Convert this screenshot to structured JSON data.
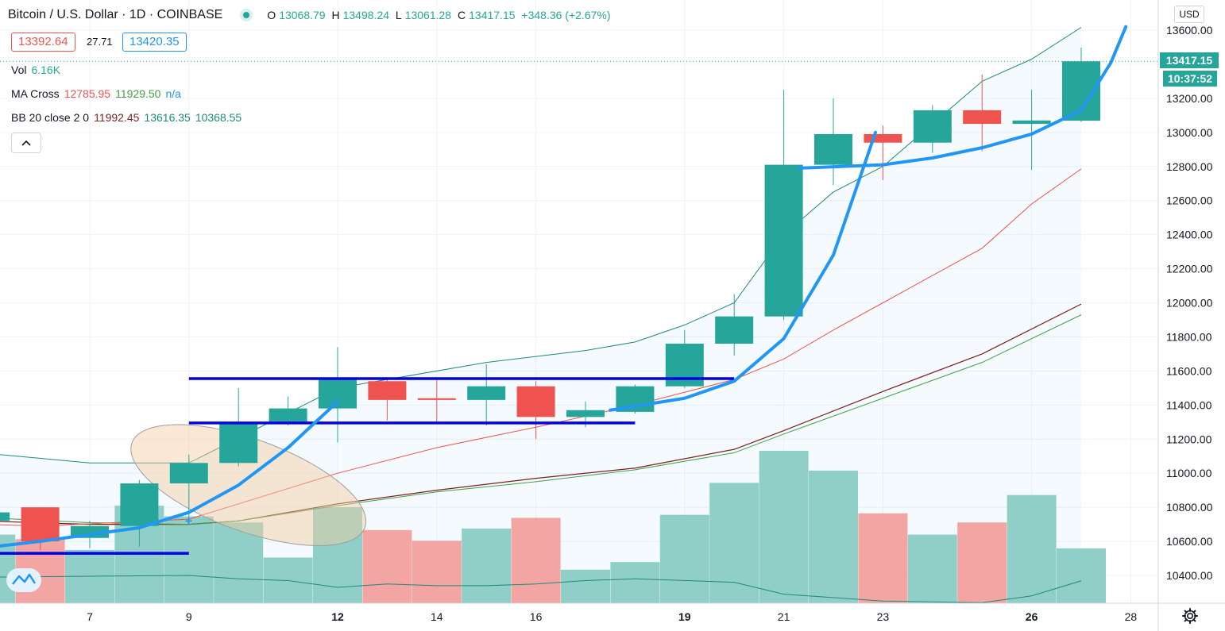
{
  "header": {
    "title": "Bitcoin / U.S. Dollar · 1D · COINBASE",
    "open_label": "O",
    "open": "13068.79",
    "high_label": "H",
    "high": "13498.24",
    "low_label": "L",
    "low": "13061.28",
    "close_label": "C",
    "close": "13417.15",
    "change": "+348.36 (+2.67%)"
  },
  "quote": {
    "bid": "13392.64",
    "spread": "27.71",
    "ask": "13420.35"
  },
  "indicators": {
    "vol": {
      "label": "Vol",
      "value": "6.16K"
    },
    "ma_cross": {
      "label": "MA Cross",
      "fast": "12785.95",
      "slow": "11929.50",
      "extra": "n/a"
    },
    "bb": {
      "label": "BB 20 close 2 0",
      "basis": "11992.45",
      "upper": "13616.35",
      "lower": "10368.55"
    }
  },
  "collapse_icon": "chevron-up-icon",
  "currency_button": "USD",
  "last_price": "13417.15",
  "countdown": "10:37:52",
  "colors": {
    "up": "#26a69a",
    "down": "#ef5350",
    "up_vol": "#8fcfc7",
    "down_vol": "#f2a5a3",
    "bb_band": "#1e8a78",
    "ma_fast": "#ef5350",
    "ma_slow": "#43a047",
    "bb_basis": "#7b1f1f",
    "curve": "#2196f3",
    "level": "#0000e6"
  },
  "chart_data": {
    "type": "candlestick",
    "x_ticks": [
      {
        "day": 7,
        "label": "7"
      },
      {
        "day": 9,
        "label": "9"
      },
      {
        "day": 12,
        "label": "12"
      },
      {
        "day": 14,
        "label": "14"
      },
      {
        "day": 16,
        "label": "16"
      },
      {
        "day": 19,
        "label": "19"
      },
      {
        "day": 21,
        "label": "21"
      },
      {
        "day": 23,
        "label": "23"
      },
      {
        "day": 26,
        "label": "26"
      },
      {
        "day": 28,
        "label": "28"
      }
    ],
    "y_ticks": [
      "13600.00",
      "13400.00",
      "13200.00",
      "13000.00",
      "12800.00",
      "12600.00",
      "12400.00",
      "12200.00",
      "12000.00",
      "11800.00",
      "11600.00",
      "11400.00",
      "11200.00",
      "11000.00",
      "10800.00",
      "10600.00",
      "10400.00"
    ],
    "y_range": [
      10250,
      13700
    ],
    "candles": [
      {
        "day": 5,
        "o": 10720,
        "h": 10780,
        "l": 10640,
        "c": 10770
      },
      {
        "day": 6,
        "o": 10800,
        "h": 10800,
        "l": 10550,
        "c": 10600
      },
      {
        "day": 7,
        "o": 10620,
        "h": 10720,
        "l": 10560,
        "c": 10690
      },
      {
        "day": 8,
        "o": 10690,
        "h": 10960,
        "l": 10570,
        "c": 10940
      },
      {
        "day": 9,
        "o": 10940,
        "h": 11110,
        "l": 10700,
        "c": 11060
      },
      {
        "day": 10,
        "o": 11060,
        "h": 11500,
        "l": 11040,
        "c": 11300
      },
      {
        "day": 11,
        "o": 11300,
        "h": 11450,
        "l": 11280,
        "c": 11380
      },
      {
        "day": 12,
        "o": 11380,
        "h": 11740,
        "l": 11180,
        "c": 11550
      },
      {
        "day": 13,
        "o": 11540,
        "h": 11560,
        "l": 11310,
        "c": 11430
      },
      {
        "day": 14,
        "o": 11440,
        "h": 11550,
        "l": 11300,
        "c": 11430
      },
      {
        "day": 15,
        "o": 11430,
        "h": 11640,
        "l": 11280,
        "c": 11510
      },
      {
        "day": 16,
        "o": 11510,
        "h": 11540,
        "l": 11200,
        "c": 11330
      },
      {
        "day": 17,
        "o": 11330,
        "h": 11420,
        "l": 11270,
        "c": 11370
      },
      {
        "day": 18,
        "o": 11360,
        "h": 11520,
        "l": 11350,
        "c": 11510
      },
      {
        "day": 19,
        "o": 11510,
        "h": 11840,
        "l": 11500,
        "c": 11760
      },
      {
        "day": 20,
        "o": 11760,
        "h": 12050,
        "l": 11690,
        "c": 11920
      },
      {
        "day": 21,
        "o": 11920,
        "h": 13250,
        "l": 11900,
        "c": 12810
      },
      {
        "day": 22,
        "o": 12810,
        "h": 13200,
        "l": 12690,
        "c": 12990
      },
      {
        "day": 23,
        "o": 12990,
        "h": 13040,
        "l": 12720,
        "c": 12940
      },
      {
        "day": 24,
        "o": 12940,
        "h": 13160,
        "l": 12880,
        "c": 13130
      },
      {
        "day": 25,
        "o": 13130,
        "h": 13340,
        "l": 12890,
        "c": 13050
      },
      {
        "day": 26,
        "o": 13050,
        "h": 13250,
        "l": 12780,
        "c": 13070
      },
      {
        "day": 27,
        "o": 13068.79,
        "h": 13498.24,
        "l": 13061.28,
        "c": 13417.15
      }
    ],
    "volume": [
      {
        "day": 5,
        "v": 0.45,
        "up": true
      },
      {
        "day": 6,
        "v": 0.42,
        "up": false
      },
      {
        "day": 7,
        "v": 0.35,
        "up": true
      },
      {
        "day": 8,
        "v": 0.64,
        "up": true
      },
      {
        "day": 9,
        "v": 0.57,
        "up": true
      },
      {
        "day": 10,
        "v": 0.53,
        "up": true
      },
      {
        "day": 11,
        "v": 0.3,
        "up": true
      },
      {
        "day": 12,
        "v": 0.63,
        "up": true
      },
      {
        "day": 13,
        "v": 0.48,
        "up": false
      },
      {
        "day": 14,
        "v": 0.41,
        "up": false
      },
      {
        "day": 15,
        "v": 0.49,
        "up": true
      },
      {
        "day": 16,
        "v": 0.56,
        "up": false
      },
      {
        "day": 17,
        "v": 0.22,
        "up": true
      },
      {
        "day": 18,
        "v": 0.27,
        "up": true
      },
      {
        "day": 19,
        "v": 0.58,
        "up": true
      },
      {
        "day": 20,
        "v": 0.79,
        "up": true
      },
      {
        "day": 21,
        "v": 1.0,
        "up": true
      },
      {
        "day": 22,
        "v": 0.87,
        "up": true
      },
      {
        "day": 23,
        "v": 0.59,
        "up": false
      },
      {
        "day": 24,
        "v": 0.45,
        "up": true
      },
      {
        "day": 25,
        "v": 0.53,
        "up": false
      },
      {
        "day": 26,
        "v": 0.71,
        "up": true
      },
      {
        "day": 27,
        "v": 0.36,
        "up": true
      }
    ],
    "bb_upper": [
      [
        4.8,
        11120
      ],
      [
        7,
        11060
      ],
      [
        9,
        11060
      ],
      [
        12,
        11500
      ],
      [
        15,
        11650
      ],
      [
        17,
        11720
      ],
      [
        18,
        11770
      ],
      [
        19,
        11870
      ],
      [
        20,
        12000
      ],
      [
        21,
        12400
      ],
      [
        22,
        12650
      ],
      [
        23,
        12800
      ],
      [
        24,
        13050
      ],
      [
        25,
        13300
      ],
      [
        26,
        13430
      ],
      [
        27,
        13616.35
      ]
    ],
    "ma_fast": [
      [
        4.8,
        10700
      ],
      [
        6,
        10690
      ],
      [
        9,
        10730
      ],
      [
        10,
        10820
      ],
      [
        12,
        11000
      ],
      [
        14,
        11150
      ],
      [
        16,
        11270
      ],
      [
        18,
        11400
      ],
      [
        20,
        11550
      ],
      [
        21,
        11670
      ],
      [
        22,
        11840
      ],
      [
        23,
        12000
      ],
      [
        25,
        12320
      ],
      [
        26,
        12580
      ],
      [
        27,
        12785.95
      ]
    ],
    "bb_basis": [
      [
        4.8,
        10720
      ],
      [
        7,
        10700
      ],
      [
        9,
        10700
      ],
      [
        10,
        10720
      ],
      [
        12,
        10820
      ],
      [
        14,
        10900
      ],
      [
        16,
        10970
      ],
      [
        18,
        11030
      ],
      [
        20,
        11140
      ],
      [
        21,
        11250
      ],
      [
        23,
        11480
      ],
      [
        25,
        11700
      ],
      [
        27,
        11992.45
      ]
    ],
    "ma_slow": [
      [
        4.8,
        10740
      ],
      [
        7,
        10710
      ],
      [
        9,
        10700
      ],
      [
        10,
        10720
      ],
      [
        12,
        10810
      ],
      [
        14,
        10890
      ],
      [
        16,
        10950
      ],
      [
        18,
        11020
      ],
      [
        20,
        11120
      ],
      [
        21,
        11230
      ],
      [
        23,
        11440
      ],
      [
        25,
        11650
      ],
      [
        27,
        11929.5
      ]
    ],
    "bb_lower_series": [
      [
        4.8,
        10390
      ],
      [
        9,
        10400
      ],
      [
        10,
        10380
      ],
      [
        11,
        10370
      ],
      [
        12,
        10330
      ],
      [
        13,
        10350
      ],
      [
        14,
        10340
      ],
      [
        15,
        10340
      ],
      [
        16,
        10350
      ],
      [
        17,
        10370
      ],
      [
        18,
        10380
      ],
      [
        20,
        10360
      ],
      [
        21,
        10290
      ],
      [
        23,
        10250
      ],
      [
        25,
        10240
      ],
      [
        26,
        10280
      ],
      [
        27,
        10368.55
      ]
    ],
    "curve": [
      [
        4.8,
        10560
      ],
      [
        6,
        10600
      ],
      [
        8,
        10680
      ],
      [
        9,
        10770
      ],
      [
        10,
        10930
      ],
      [
        11,
        11150
      ],
      [
        12,
        11420
      ]
    ],
    "curve2": [
      [
        17.5,
        11370
      ],
      [
        19,
        11440
      ],
      [
        20,
        11540
      ],
      [
        21,
        11790
      ],
      [
        22,
        12280
      ],
      [
        22.85,
        13000
      ]
    ],
    "curve3": [
      [
        21.3,
        12790
      ],
      [
        23,
        12810
      ],
      [
        24,
        12850
      ],
      [
        25,
        12910
      ],
      [
        26,
        12990
      ],
      [
        27,
        13130
      ],
      [
        27.6,
        13410
      ],
      [
        27.9,
        13620
      ]
    ],
    "levels": [
      {
        "from": 5,
        "to": 9,
        "y": 10530
      },
      {
        "from": 9,
        "to": 20,
        "y": 11555
      },
      {
        "from": 9,
        "to": 18,
        "y": 11295
      }
    ],
    "ellipse": {
      "day": 10.2,
      "price": 10930,
      "rx_days": 2.5,
      "ry_price": 270
    }
  }
}
